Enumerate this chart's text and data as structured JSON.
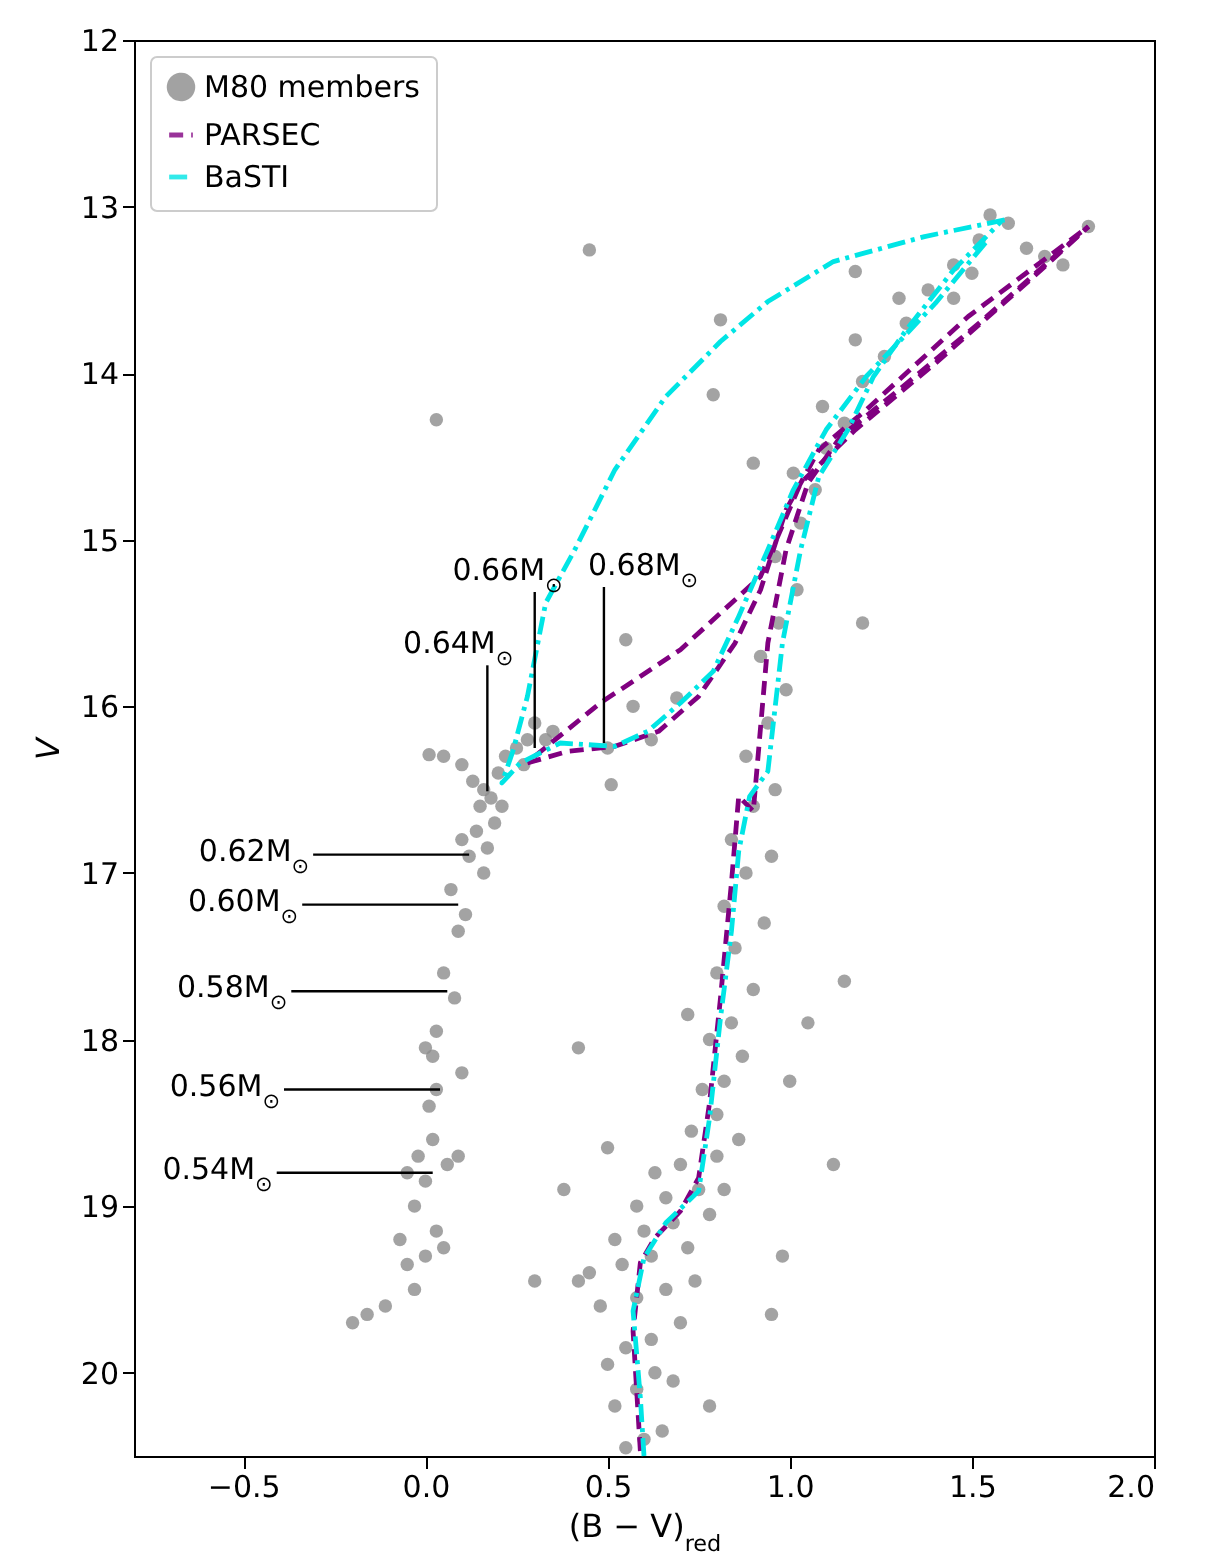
{
  "chart_data": {
    "type": "scatter",
    "xlabel": "(B − V)$_{red}$",
    "ylabel": "V",
    "xlim": [
      -0.8,
      2.0
    ],
    "ylim": [
      20.5,
      12
    ],
    "xticks": [
      {
        "value": -0.5,
        "label": "−0.5"
      },
      {
        "value": 0,
        "label": "0.0"
      },
      0.5,
      {
        "value": 1,
        "label": "1.0"
      },
      1.5,
      {
        "value": 2,
        "label": "2.0"
      }
    ],
    "yticks": [
      12,
      13,
      14,
      15,
      16,
      17,
      18,
      19,
      20
    ],
    "grid": false,
    "legend": "top left",
    "series": [
      {
        "name": "M80 members",
        "marker": "circle",
        "color": "#8c8c8c",
        "x": [
          0.05,
          0.1,
          0.13,
          0.16,
          0.18,
          0.15,
          0.2,
          0.22,
          0.25,
          0.28,
          0.3,
          0.27,
          0.33,
          0.35,
          0.21,
          0.19,
          0.14,
          0.17,
          0.12,
          0.1,
          0.16,
          0.07,
          0.11,
          0.09,
          0.05,
          0.08,
          0.03,
          0.0,
          0.02,
          0.03,
          0.01,
          0.1,
          0.02,
          -0.02,
          -0.05,
          0.0,
          0.06,
          0.09,
          -0.03,
          -0.07,
          0.03,
          -0.05,
          -0.03,
          -0.11,
          -0.16,
          -0.2,
          0.05,
          0.0,
          0.55,
          0.6,
          0.65,
          0.52,
          0.58,
          0.63,
          0.68,
          0.5,
          0.55,
          0.62,
          0.7,
          0.48,
          0.58,
          0.66,
          0.74,
          0.45,
          0.54,
          0.62,
          0.72,
          0.52,
          0.6,
          0.68,
          0.78,
          0.58,
          0.66,
          0.75,
          0.82,
          0.63,
          0.7,
          0.8,
          0.86,
          0.73,
          0.8,
          0.76,
          0.82,
          0.87,
          0.78,
          0.84,
          0.72,
          0.9,
          0.8,
          0.85,
          0.93,
          0.82,
          0.88,
          0.95,
          0.84,
          0.9,
          0.96,
          0.88,
          0.94,
          0.99,
          0.92,
          0.97,
          1.02,
          0.96,
          1.03,
          1.07,
          1.01,
          1.1,
          1.15,
          1.09,
          1.2,
          1.26,
          1.18,
          1.32,
          1.38,
          1.3,
          1.45,
          1.52,
          1.55,
          1.6,
          1.65,
          1.7,
          1.75,
          1.82,
          1.5,
          1.45,
          0.03,
          0.45,
          0.81,
          0.79,
          0.9,
          1.2,
          1.18,
          0.01,
          0.51,
          0.57,
          0.62,
          0.69,
          0.55,
          0.5,
          0.42,
          0.38,
          0.42,
          0.3,
          1.0,
          1.05,
          1.15,
          1.12,
          0.98,
          0.78,
          0.95,
          0.5
        ],
        "values": [
          16.3,
          16.35,
          16.45,
          16.5,
          16.55,
          16.6,
          16.4,
          16.3,
          16.25,
          16.2,
          16.1,
          16.35,
          16.2,
          16.15,
          16.6,
          16.7,
          16.75,
          16.85,
          16.9,
          16.8,
          17.0,
          17.1,
          17.25,
          17.35,
          17.6,
          17.75,
          17.95,
          18.05,
          18.1,
          18.3,
          18.4,
          18.2,
          18.6,
          18.7,
          18.8,
          18.85,
          18.75,
          18.7,
          19.0,
          19.2,
          19.15,
          19.35,
          19.5,
          19.6,
          19.65,
          19.7,
          19.25,
          19.3,
          20.45,
          20.4,
          20.35,
          20.2,
          20.1,
          20.0,
          20.05,
          19.95,
          19.85,
          19.8,
          19.7,
          19.6,
          19.55,
          19.5,
          19.45,
          19.4,
          19.35,
          19.3,
          19.25,
          19.2,
          19.15,
          19.1,
          19.05,
          19.0,
          18.95,
          18.9,
          18.9,
          18.8,
          18.75,
          18.7,
          18.6,
          18.55,
          18.45,
          18.3,
          18.25,
          18.1,
          18.0,
          17.9,
          17.85,
          17.7,
          17.6,
          17.45,
          17.3,
          17.2,
          17.0,
          16.9,
          16.8,
          16.6,
          16.5,
          16.3,
          16.1,
          15.9,
          15.7,
          15.5,
          15.3,
          15.1,
          14.9,
          14.7,
          14.6,
          14.45,
          14.3,
          14.2,
          14.05,
          13.9,
          13.8,
          13.7,
          13.5,
          13.55,
          13.35,
          13.2,
          13.05,
          13.1,
          13.25,
          13.3,
          13.35,
          13.12,
          13.4,
          13.55,
          14.28,
          13.26,
          13.68,
          14.13,
          14.54,
          15.5,
          13.39,
          16.29,
          16.47,
          16.0,
          16.2,
          15.95,
          15.6,
          16.25,
          18.05,
          18.9,
          19.45,
          19.45,
          18.25,
          17.9,
          17.65,
          18.75,
          19.3,
          20.2,
          19.65,
          18.65
        ]
      },
      {
        "name": "PARSEC",
        "type": "line",
        "marker": "none",
        "line_style": "dashed",
        "color": "#800080",
        "x": [
          0.59,
          0.57,
          0.59,
          0.63,
          0.7,
          0.75,
          0.78,
          0.81,
          0.84,
          0.86,
          0.9,
          0.94,
          0.99,
          1.05,
          1.14,
          1.3,
          1.52,
          1.82
        ],
        "values": [
          20.47,
          19.75,
          19.34,
          19.19,
          19.03,
          18.83,
          18.38,
          17.75,
          17.06,
          16.54,
          16.63,
          15.62,
          15.06,
          14.66,
          14.38,
          14.1,
          13.7,
          13.12
        ]
      },
      {
        "type": "line",
        "marker": "none",
        "line_style": "dashed",
        "color": "#800080",
        "x": [
          0.28,
          0.39,
          0.52,
          0.64,
          0.75,
          0.85,
          0.92,
          0.99,
          1.08,
          1.21,
          1.49,
          1.82
        ],
        "values": [
          16.34,
          16.27,
          16.24,
          16.15,
          15.94,
          15.62,
          15.3,
          14.82,
          14.46,
          14.22,
          13.66,
          13.12
        ]
      },
      {
        "type": "line",
        "marker": "none",
        "line_style": "dashed",
        "color": "#800080",
        "x": [
          0.3,
          0.48,
          0.7,
          0.92,
          1.03,
          1.18,
          1.4,
          1.67,
          1.82
        ],
        "values": [
          16.3,
          15.98,
          15.66,
          15.22,
          14.66,
          14.34,
          13.94,
          13.42,
          13.12
        ]
      },
      {
        "name": "BaSTI",
        "type": "line",
        "marker": "none",
        "line_style": "dashdot",
        "color": "#00e5e5",
        "x": [
          0.6,
          0.59,
          0.57,
          0.6,
          0.66,
          0.75,
          0.78,
          0.81,
          0.84,
          0.86,
          0.89,
          0.94,
          0.98,
          1.03,
          1.08,
          1.16,
          1.23,
          1.32,
          1.45,
          1.58
        ],
        "values": [
          20.5,
          20.15,
          19.63,
          19.31,
          19.1,
          18.91,
          18.47,
          17.87,
          17.35,
          16.87,
          16.54,
          16.39,
          15.62,
          15.06,
          14.62,
          14.34,
          14.02,
          13.74,
          13.38,
          13.09
        ]
      },
      {
        "type": "line",
        "marker": "none",
        "line_style": "dashdot",
        "color": "#00e5e5",
        "x": [
          1.59,
          1.37,
          1.12,
          0.94,
          0.81,
          0.66,
          0.52,
          0.41,
          0.33,
          0.28,
          0.24,
          0.21,
          0.26,
          0.37,
          0.52,
          0.61,
          0.7,
          0.79,
          0.86,
          0.94,
          1.01,
          1.1,
          1.21,
          1.4,
          1.54
        ],
        "values": [
          13.08,
          13.18,
          13.33,
          13.57,
          13.81,
          14.14,
          14.58,
          15.06,
          15.38,
          15.94,
          16.27,
          16.46,
          16.34,
          16.22,
          16.24,
          16.15,
          15.98,
          15.79,
          15.46,
          15.06,
          14.7,
          14.34,
          14.02,
          13.58,
          13.21
        ]
      }
    ],
    "annotations": [
      {
        "text": "0.64M$_{⊙}$",
        "x": 0.17,
        "y": 16.51
      },
      {
        "text": "0.66M$_{⊙}$",
        "x": 0.3,
        "y": 16.25
      },
      {
        "text": "0.68M$_{⊙}$",
        "x": 0.49,
        "y": 16.22
      },
      {
        "text": "0.62M$_{⊙}$",
        "x": 0.12,
        "y": 16.89
      },
      {
        "text": "0.60M$_{⊙}$",
        "x": 0.09,
        "y": 17.19
      },
      {
        "text": "0.58M$_{⊙}$",
        "x": 0.06,
        "y": 17.71
      },
      {
        "text": "0.56M$_{⊙}$",
        "x": 0.04,
        "y": 18.3
      },
      {
        "text": "0.54M$_{⊙}$",
        "x": 0.02,
        "y": 18.8
      }
    ]
  }
}
